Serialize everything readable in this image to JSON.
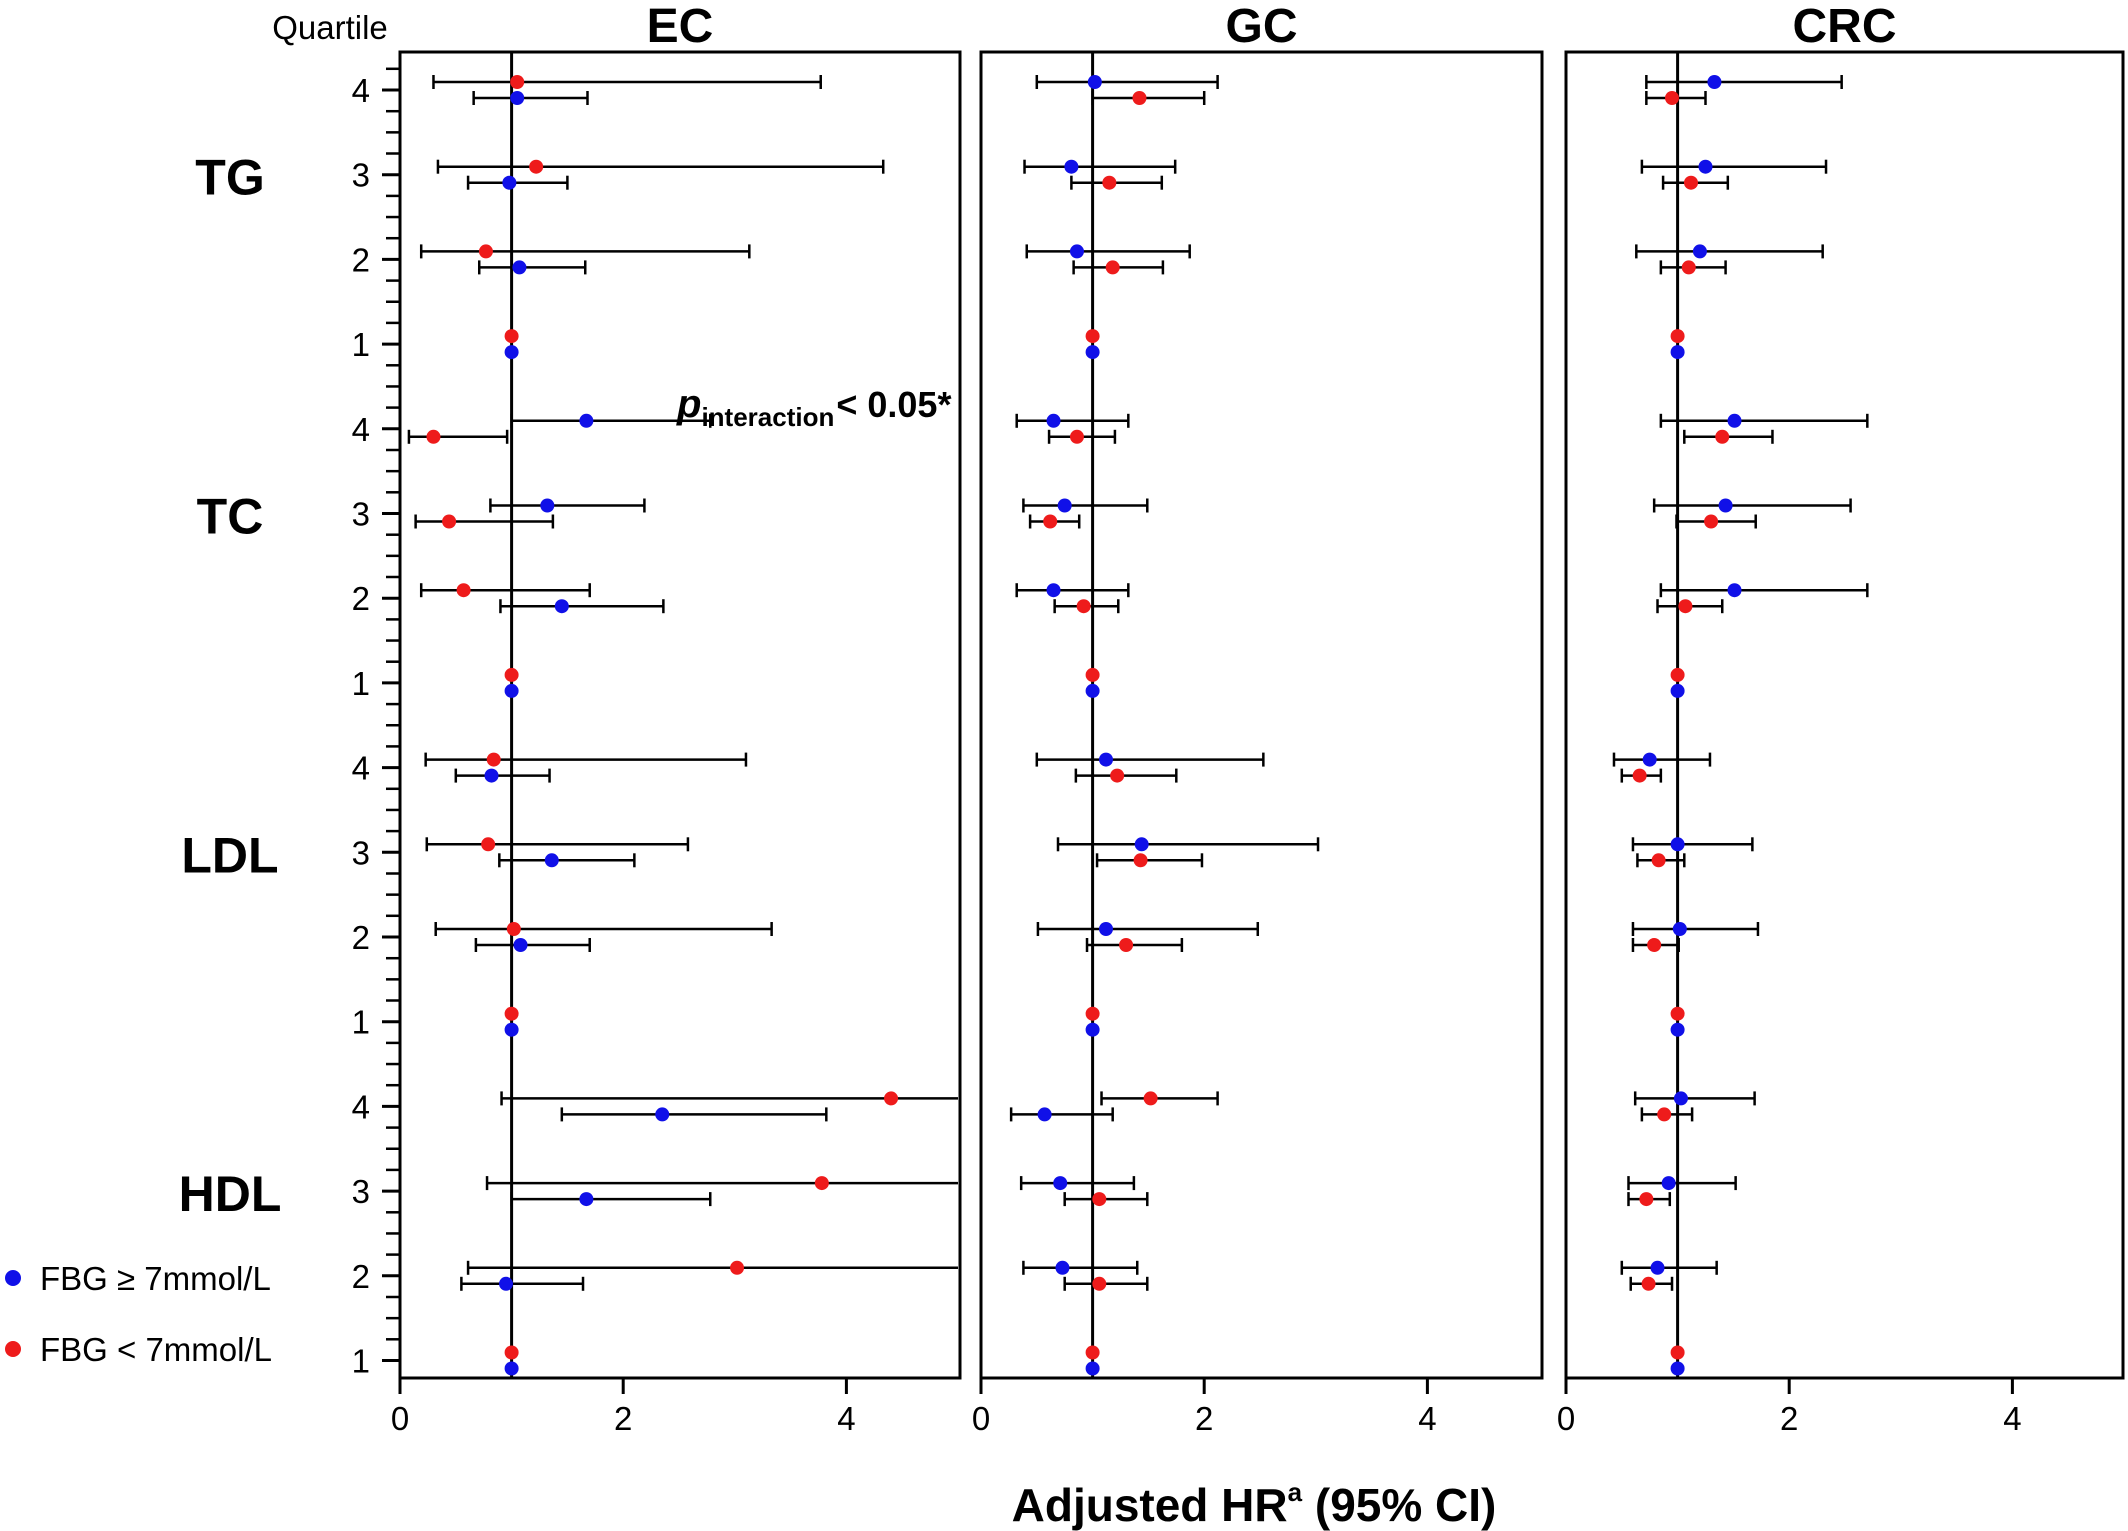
{
  "figure": {
    "quartile_header": "Quartile",
    "x_axis_title": "Adjusted HR",
    "x_axis_title_sup": "a",
    "x_axis_title_suffix": " (95% CI)",
    "annotation": {
      "p": "p",
      "sub": "interaction",
      "rest": "< 0.05*"
    },
    "legend": [
      {
        "label": "FBG ≥ 7mmol/L",
        "color": "#1010e8"
      },
      {
        "label": "FBG < 7mmol/L",
        "color": "#ee1b1b"
      }
    ]
  },
  "chart_data": {
    "type": "forest",
    "groups": [
      "TG",
      "TC",
      "LDL",
      "HDL"
    ],
    "quartiles": [
      4,
      3,
      2,
      1
    ],
    "x_ticks": [
      0,
      2,
      4
    ],
    "xlim": [
      0,
      5
    ],
    "reference_line": 1,
    "series": [
      {
        "name": "FBG ≥ 7mmol/L",
        "color": "#1010e8"
      },
      {
        "name": "FBG < 7mmol/L",
        "color": "#ee1b1b"
      }
    ],
    "panels": [
      {
        "title": "EC",
        "rows": {
          "TG": {
            "4": {
              "blue": [
                1.05,
                0.66,
                1.68
              ],
              "red": [
                1.05,
                0.3,
                3.77
              ]
            },
            "3": {
              "blue": [
                0.98,
                0.61,
                1.5
              ],
              "red": [
                1.22,
                0.34,
                4.33
              ]
            },
            "2": {
              "blue": [
                1.07,
                0.71,
                1.66
              ],
              "red": [
                0.77,
                0.19,
                3.13
              ]
            },
            "1": {
              "blue": [
                1.0
              ],
              "red": [
                1.0
              ]
            }
          },
          "TC": {
            "4": {
              "blue": [
                1.67,
                1.0,
                2.78
              ],
              "red": [
                0.3,
                0.08,
                0.96
              ]
            },
            "3": {
              "blue": [
                1.32,
                0.81,
                2.19
              ],
              "red": [
                0.44,
                0.14,
                1.37
              ]
            },
            "2": {
              "blue": [
                1.45,
                0.9,
                2.36
              ],
              "red": [
                0.57,
                0.19,
                1.7
              ]
            },
            "1": {
              "blue": [
                1.0
              ],
              "red": [
                1.0
              ]
            }
          },
          "LDL": {
            "4": {
              "blue": [
                0.82,
                0.5,
                1.34
              ],
              "red": [
                0.84,
                0.23,
                3.1
              ]
            },
            "3": {
              "blue": [
                1.36,
                0.89,
                2.1
              ],
              "red": [
                0.79,
                0.24,
                2.58
              ]
            },
            "2": {
              "blue": [
                1.08,
                0.68,
                1.7
              ],
              "red": [
                1.02,
                0.32,
                3.33
              ]
            },
            "1": {
              "blue": [
                1.0
              ],
              "red": [
                1.0
              ]
            }
          },
          "HDL": {
            "4": {
              "blue": [
                2.35,
                1.45,
                3.82
              ],
              "red": [
                4.4,
                0.91,
                5.0
              ]
            },
            "3": {
              "blue": [
                1.67,
                1.0,
                2.78
              ],
              "red": [
                3.78,
                0.78,
                5.0
              ]
            },
            "2": {
              "blue": [
                0.95,
                0.55,
                1.64
              ],
              "red": [
                3.02,
                0.61,
                5.0
              ]
            },
            "1": {
              "blue": [
                1.0
              ],
              "red": [
                1.0
              ]
            }
          }
        }
      },
      {
        "title": "GC",
        "rows": {
          "TG": {
            "4": {
              "blue": [
                1.02,
                0.5,
                2.12
              ],
              "red": [
                1.42,
                1.0,
                2.0
              ]
            },
            "3": {
              "blue": [
                0.81,
                0.39,
                1.74
              ],
              "red": [
                1.15,
                0.81,
                1.62
              ]
            },
            "2": {
              "blue": [
                0.86,
                0.41,
                1.87
              ],
              "red": [
                1.18,
                0.83,
                1.63
              ]
            },
            "1": {
              "blue": [
                1.0
              ],
              "red": [
                1.0
              ]
            }
          },
          "TC": {
            "4": {
              "blue": [
                0.65,
                0.32,
                1.32
              ],
              "red": [
                0.86,
                0.61,
                1.2
              ]
            },
            "3": {
              "blue": [
                0.75,
                0.38,
                1.49
              ],
              "red": [
                0.62,
                0.44,
                0.88
              ]
            },
            "2": {
              "blue": [
                0.65,
                0.32,
                1.32
              ],
              "red": [
                0.92,
                0.66,
                1.23
              ]
            },
            "1": {
              "blue": [
                1.0
              ],
              "red": [
                1.0
              ]
            }
          },
          "LDL": {
            "4": {
              "blue": [
                1.12,
                0.5,
                2.53
              ],
              "red": [
                1.22,
                0.85,
                1.75
              ]
            },
            "3": {
              "blue": [
                1.44,
                0.69,
                3.02
              ],
              "red": [
                1.43,
                1.04,
                1.98
              ]
            },
            "2": {
              "blue": [
                1.12,
                0.51,
                2.48
              ],
              "red": [
                1.3,
                0.95,
                1.8
              ]
            },
            "1": {
              "blue": [
                1.0
              ],
              "red": [
                1.0
              ]
            }
          },
          "HDL": {
            "4": {
              "blue": [
                0.57,
                0.27,
                1.18
              ],
              "red": [
                1.52,
                1.08,
                2.12
              ]
            },
            "3": {
              "blue": [
                0.71,
                0.36,
                1.37
              ],
              "red": [
                1.06,
                0.75,
                1.49
              ]
            },
            "2": {
              "blue": [
                0.73,
                0.38,
                1.4
              ],
              "red": [
                1.06,
                0.75,
                1.49
              ]
            },
            "1": {
              "blue": [
                1.0
              ],
              "red": [
                1.0
              ]
            }
          }
        }
      },
      {
        "title": "CRC",
        "rows": {
          "TG": {
            "4": {
              "blue": [
                1.33,
                0.72,
                2.47
              ],
              "red": [
                0.95,
                0.72,
                1.25
              ]
            },
            "3": {
              "blue": [
                1.25,
                0.68,
                2.33
              ],
              "red": [
                1.12,
                0.87,
                1.45
              ]
            },
            "2": {
              "blue": [
                1.2,
                0.63,
                2.3
              ],
              "red": [
                1.1,
                0.85,
                1.43
              ]
            },
            "1": {
              "blue": [
                1.0
              ],
              "red": [
                1.0
              ]
            }
          },
          "TC": {
            "4": {
              "blue": [
                1.51,
                0.85,
                2.7
              ],
              "red": [
                1.4,
                1.06,
                1.85
              ]
            },
            "3": {
              "blue": [
                1.43,
                0.79,
                2.55
              ],
              "red": [
                1.3,
                0.99,
                1.7
              ]
            },
            "2": {
              "blue": [
                1.51,
                0.85,
                2.7
              ],
              "red": [
                1.07,
                0.82,
                1.4
              ]
            },
            "1": {
              "blue": [
                1.0
              ],
              "red": [
                1.0
              ]
            }
          },
          "LDL": {
            "4": {
              "blue": [
                0.75,
                0.43,
                1.29
              ],
              "red": [
                0.66,
                0.5,
                0.85
              ]
            },
            "3": {
              "blue": [
                1.0,
                0.6,
                1.67
              ],
              "red": [
                0.83,
                0.64,
                1.06
              ]
            },
            "2": {
              "blue": [
                1.02,
                0.6,
                1.72
              ],
              "red": [
                0.79,
                0.6,
                1.01
              ]
            },
            "1": {
              "blue": [
                1.0
              ],
              "red": [
                1.0
              ]
            }
          },
          "HDL": {
            "4": {
              "blue": [
                1.03,
                0.62,
                1.69
              ],
              "red": [
                0.88,
                0.68,
                1.13
              ]
            },
            "3": {
              "blue": [
                0.92,
                0.56,
                1.52
              ],
              "red": [
                0.72,
                0.56,
                0.93
              ]
            },
            "2": {
              "blue": [
                0.82,
                0.5,
                1.35
              ],
              "red": [
                0.74,
                0.58,
                0.95
              ]
            },
            "1": {
              "blue": [
                1.0
              ],
              "red": [
                1.0
              ]
            }
          }
        }
      }
    ]
  }
}
